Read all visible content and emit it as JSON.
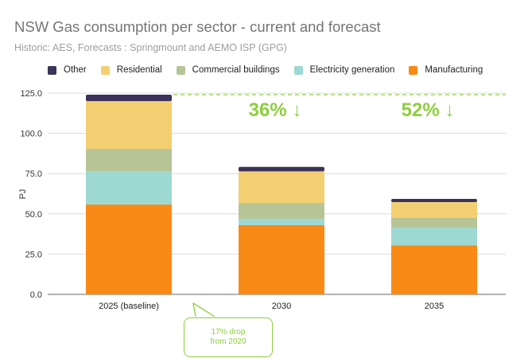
{
  "chart_data": {
    "type": "bar",
    "stacked": true,
    "title": "NSW Gas consumption per sector - current and forecast",
    "subtitle": "Historic: AES, Forecasts : Springmount and AEMO ISP (GPG)",
    "xlabel": "",
    "ylabel": "PJ",
    "ylim": [
      0,
      125
    ],
    "yticks": [
      "0.0",
      "25.0",
      "50.0",
      "75.0",
      "100.0",
      "125.0"
    ],
    "ytick_values": [
      0,
      25,
      50,
      75,
      100,
      125
    ],
    "grid": true,
    "legend_position": "top",
    "categories": [
      "2025 (baseline)",
      "2030",
      "2035"
    ],
    "series": [
      {
        "name": "Manufacturing",
        "color": "#fa8a16",
        "values": [
          55.8,
          43.0,
          30.5
        ]
      },
      {
        "name": "Electricity generation",
        "color": "#9dd8d2",
        "values": [
          20.8,
          3.8,
          11.0
        ]
      },
      {
        "name": "Commercial buildings",
        "color": "#b6c496",
        "values": [
          13.8,
          10.0,
          6.1
        ]
      },
      {
        "name": "Residential",
        "color": "#f4cf71",
        "values": [
          29.6,
          19.6,
          9.7
        ]
      },
      {
        "name": "Other",
        "color": "#3b3359",
        "values": [
          4.0,
          2.8,
          2.0
        ]
      }
    ],
    "legend_order": [
      "Other",
      "Residential",
      "Commercial buildings",
      "Electricity generation",
      "Manufacturing"
    ],
    "annotations": {
      "baseline_value": 124,
      "baseline_color": "#8ccf3c",
      "drops": [
        {
          "category": "2030",
          "text": "36% ↓"
        },
        {
          "category": "2035",
          "text": "52% ↓"
        }
      ],
      "callout": {
        "category": "2025 (baseline)",
        "lines": [
          "17% drop",
          "from 2020"
        ]
      }
    }
  }
}
